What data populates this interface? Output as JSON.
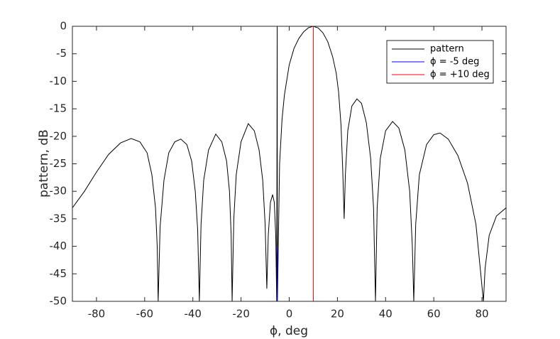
{
  "chart_data": {
    "type": "line",
    "xlabel": "ϕ, deg",
    "ylabel": "pattern, dB",
    "xlim": [
      -90,
      90
    ],
    "xticks": [
      -80,
      -60,
      -40,
      -20,
      0,
      20,
      40,
      60,
      80
    ],
    "ylim": [
      -50,
      0
    ],
    "yticks": [
      0,
      -5,
      -10,
      -15,
      -20,
      -25,
      -30,
      -35,
      -40,
      -45,
      -50
    ],
    "grid": false,
    "legend": "top-right",
    "series": [
      {
        "name": "pattern",
        "color": "#000000",
        "x": [
          -90,
          -85,
          -80,
          -75,
          -70,
          -65.6,
          -62,
          -59,
          -57,
          -55.5,
          -54.8,
          -54.4,
          -53.6,
          -52,
          -50,
          -47.5,
          -45,
          -42.5,
          -40.5,
          -39,
          -38,
          -37.3,
          -36.6,
          -35.5,
          -33.5,
          -30.5,
          -28,
          -26,
          -24.8,
          -24.1,
          -23.7,
          -23,
          -22,
          -20,
          -17,
          -14.5,
          -12.5,
          -11,
          -10,
          -9.3,
          -8.7,
          -7.8,
          -6.9,
          -6.2,
          -5.6,
          -5.2,
          -5,
          -4.9,
          -4,
          -3,
          -2,
          0,
          2,
          4,
          6,
          8,
          10,
          12,
          14,
          16,
          18,
          19.5,
          20.5,
          21.5,
          22.2,
          22.8,
          23.3,
          24.3,
          26,
          28.1,
          30,
          32,
          33.8,
          35,
          35.8,
          36.5,
          37.8,
          40,
          42.9,
          45.5,
          48,
          50,
          51.1,
          51.7,
          52.5,
          54,
          57,
          60,
          62.6,
          66,
          70,
          74,
          77.5,
          79.5,
          80.6,
          81.3,
          83,
          86,
          90
        ],
        "values": [
          -33,
          -30,
          -26.5,
          -23.3,
          -21.2,
          -20.4,
          -21,
          -23,
          -27,
          -33,
          -40,
          -50,
          -36.5,
          -28,
          -23,
          -21,
          -20.5,
          -21.5,
          -24.5,
          -30,
          -37,
          -50,
          -36,
          -28,
          -22.5,
          -19.6,
          -21,
          -24.5,
          -30,
          -38,
          -50,
          -35,
          -27,
          -21,
          -17.7,
          -19,
          -22.5,
          -28,
          -36,
          -47.7,
          -38,
          -32,
          -30.6,
          -32,
          -38,
          -50,
          0,
          -50,
          -25,
          -17,
          -12.5,
          -7,
          -4,
          -2.2,
          -1,
          -0.25,
          0,
          -0.3,
          -1.2,
          -2.8,
          -5.5,
          -8.5,
          -12,
          -18,
          -26,
          -35,
          -27,
          -19,
          -14.5,
          -13.2,
          -14,
          -17.5,
          -24,
          -33,
          -50,
          -33,
          -24,
          -19,
          -17.3,
          -18.5,
          -22.5,
          -30,
          -40,
          -50,
          -36,
          -27,
          -21.5,
          -19.7,
          -19.4,
          -20.5,
          -23.5,
          -28.5,
          -36,
          -45,
          -50,
          -44,
          -38,
          -34.5,
          -33
        ]
      },
      {
        "name": "ϕ = -5 deg",
        "color": "#0000ff",
        "x": [
          -5,
          -5
        ],
        "values": [
          -50,
          -40
        ]
      },
      {
        "name": "ϕ = +10 deg",
        "color": "#ff0000",
        "x": [
          10,
          10
        ],
        "values": [
          -50,
          0
        ]
      }
    ]
  }
}
